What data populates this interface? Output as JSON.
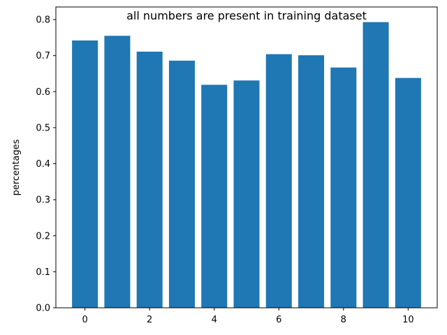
{
  "chart_data": {
    "type": "bar",
    "title": "all numbers are present in training dataset",
    "xlabel": "",
    "ylabel": "percentages",
    "categories": [
      0,
      1,
      2,
      3,
      4,
      5,
      6,
      7,
      8,
      9,
      10
    ],
    "values": [
      0.742,
      0.755,
      0.711,
      0.686,
      0.619,
      0.631,
      0.704,
      0.701,
      0.667,
      0.793,
      0.638
    ],
    "xlim": [
      -0.9,
      10.9
    ],
    "ylim": [
      0,
      0.835
    ],
    "xticks": [
      0,
      2,
      4,
      6,
      8,
      10
    ],
    "yticks": [
      0.0,
      0.1,
      0.2,
      0.3,
      0.4,
      0.5,
      0.6,
      0.7,
      0.8
    ],
    "ytick_labels": [
      "0.0",
      "0.1",
      "0.2",
      "0.3",
      "0.4",
      "0.5",
      "0.6",
      "0.7",
      "0.8"
    ],
    "grid": false,
    "bar_color": "#1f77b4"
  }
}
